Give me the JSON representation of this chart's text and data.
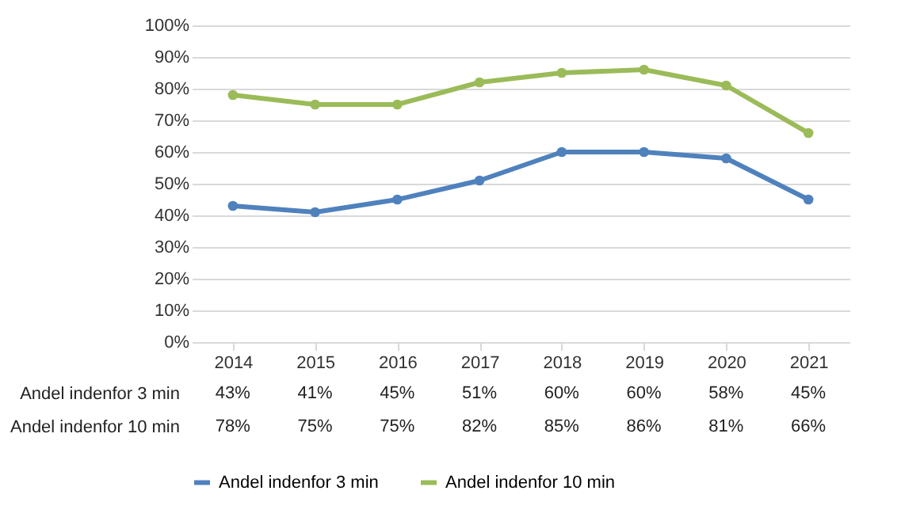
{
  "chart_data": {
    "type": "line",
    "categories": [
      "2014",
      "2015",
      "2016",
      "2017",
      "2018",
      "2019",
      "2020",
      "2021"
    ],
    "series": [
      {
        "name": "Andel indenfor 3 min",
        "color": "#4f81bd",
        "values": [
          43,
          41,
          45,
          51,
          60,
          60,
          58,
          45
        ],
        "value_labels": [
          "43%",
          "41%",
          "45%",
          "51%",
          "60%",
          "60%",
          "58%",
          "45%"
        ]
      },
      {
        "name": "Andel indenfor 10 min",
        "color": "#9bbb59",
        "values": [
          78,
          75,
          75,
          82,
          85,
          86,
          81,
          66
        ],
        "value_labels": [
          "78%",
          "75%",
          "75%",
          "82%",
          "85%",
          "86%",
          "81%",
          "66%"
        ]
      }
    ],
    "ylim": [
      0,
      100
    ],
    "yticks": [
      {
        "value": 0,
        "label": "0%"
      },
      {
        "value": 10,
        "label": "10%"
      },
      {
        "value": 20,
        "label": "20%"
      },
      {
        "value": 30,
        "label": "30%"
      },
      {
        "value": 40,
        "label": "40%"
      },
      {
        "value": 50,
        "label": "50%"
      },
      {
        "value": 60,
        "label": "60%"
      },
      {
        "value": 70,
        "label": "70%"
      },
      {
        "value": 80,
        "label": "80%"
      },
      {
        "value": 90,
        "label": "90%"
      },
      {
        "value": 100,
        "label": "100%"
      }
    ],
    "grid": "y",
    "legend": "bottom",
    "marker": "circle",
    "line_style": "solid"
  }
}
